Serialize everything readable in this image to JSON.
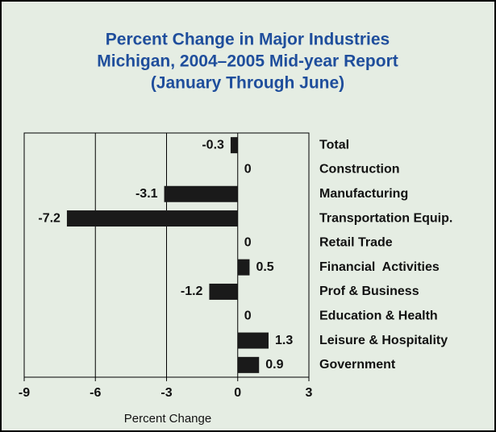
{
  "chart_data": {
    "type": "bar",
    "orientation": "horizontal",
    "title": [
      "Percent Change in Major Industries",
      "Michigan, 2004–2005 Mid-year Report",
      "(January Through June)"
    ],
    "x_label": "Percent Change",
    "categories": [
      "Total",
      "Construction",
      "Manufacturing",
      "Transportation Equip.",
      "Retail Trade",
      "Financial  Activities",
      "Prof & Business",
      "Education & Health",
      "Leisure & Hospitality",
      "Government"
    ],
    "values": [
      -0.3,
      0,
      -3.1,
      -7.2,
      0,
      0.5,
      -1.2,
      0,
      1.3,
      0.9
    ],
    "color": "#1a1a1a",
    "xlim": [
      -9,
      3
    ],
    "xticks": [
      -9,
      -6,
      -3,
      0,
      3
    ],
    "grid": true
  }
}
